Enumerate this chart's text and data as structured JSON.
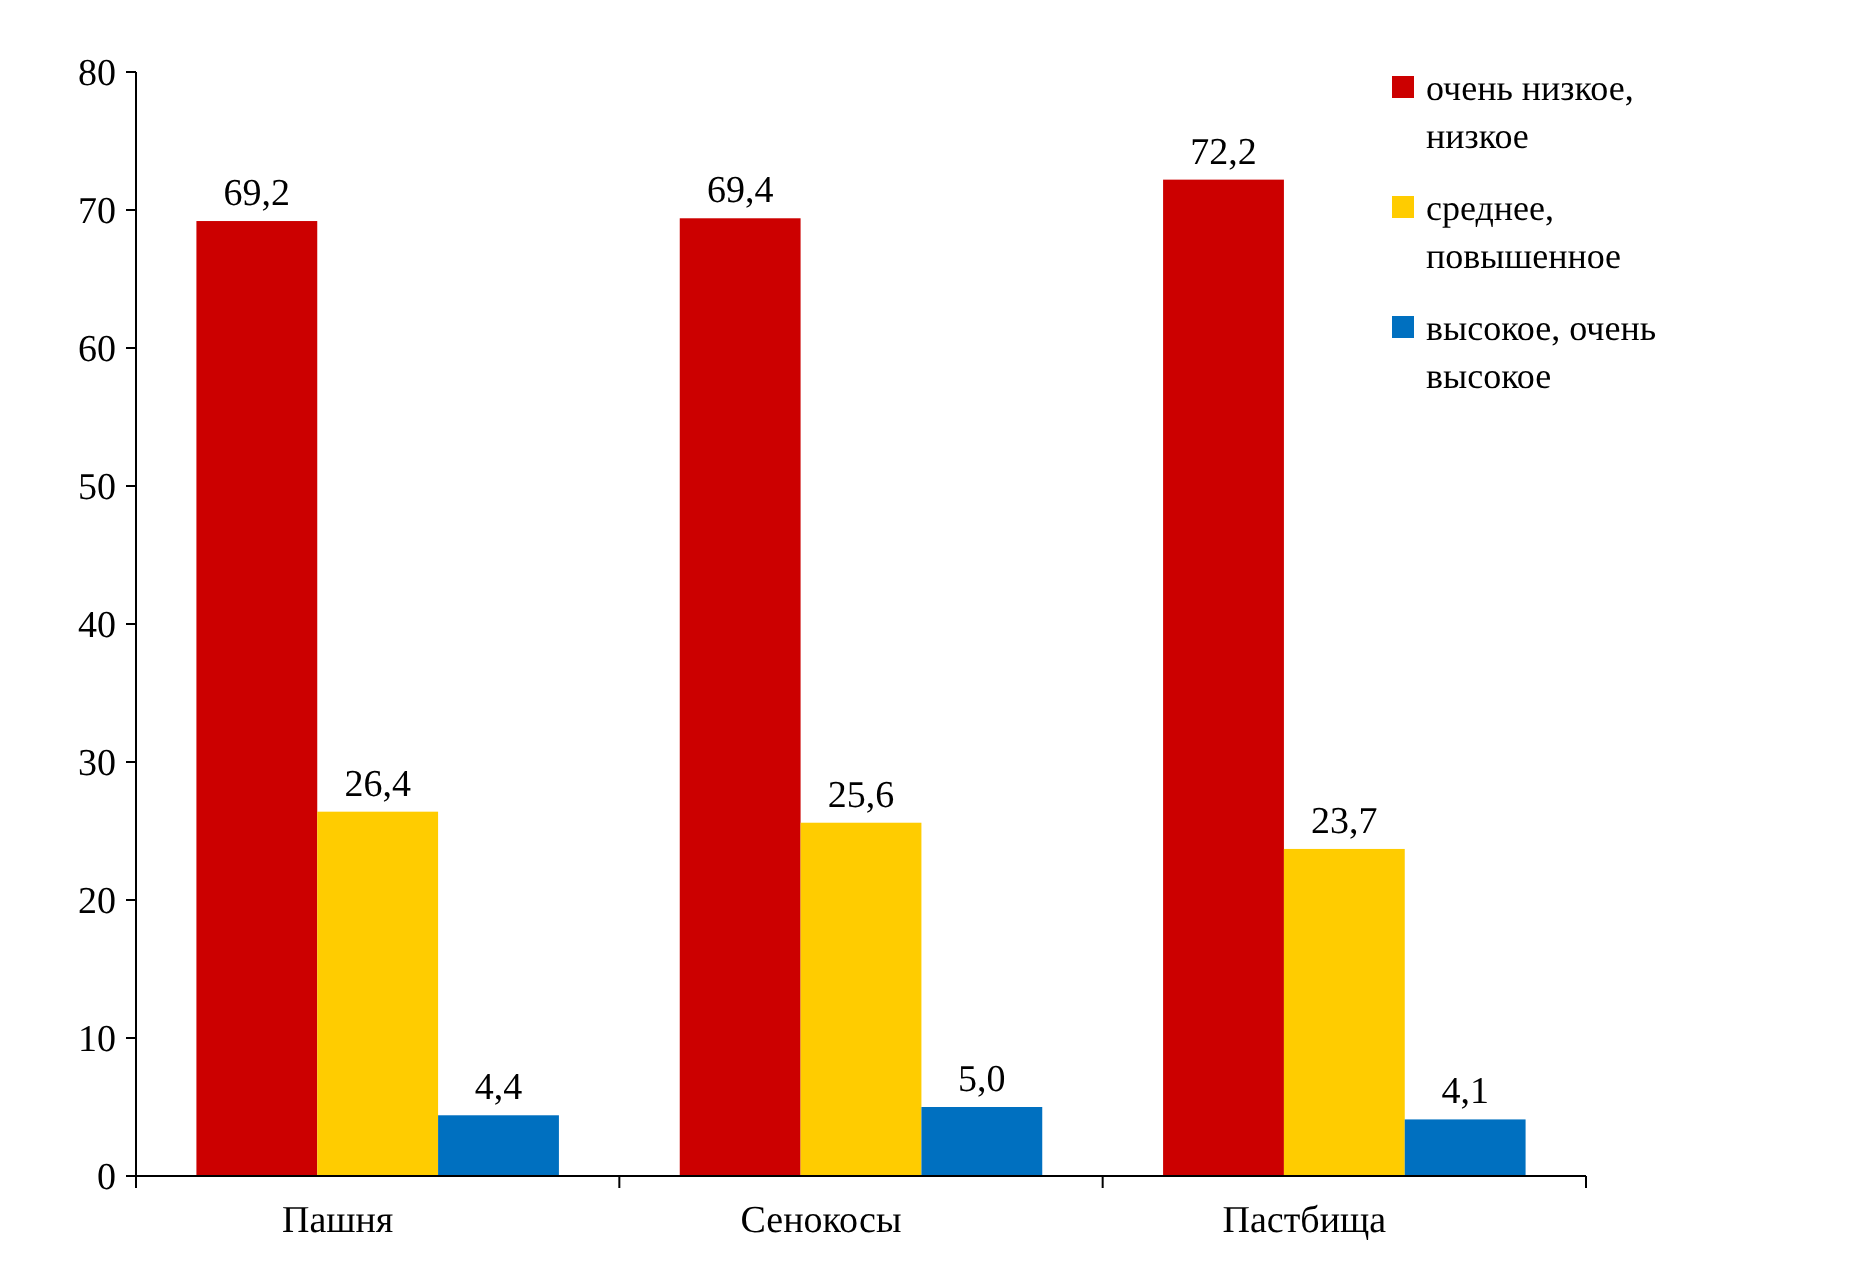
{
  "chart_data": {
    "type": "bar",
    "categories": [
      "Пашня",
      "Сенокосы",
      "Пастбища"
    ],
    "series": [
      {
        "name": "очень низкое, низкое",
        "color": "#cc0000",
        "values": [
          69.2,
          69.4,
          72.2
        ],
        "value_labels": [
          "69,2",
          "69,4",
          "72,2"
        ]
      },
      {
        "name": "среднее, повышенное",
        "color": "#ffcc00",
        "values": [
          26.4,
          25.6,
          23.7
        ],
        "value_labels": [
          "26,4",
          "25,6",
          "23,7"
        ]
      },
      {
        "name": "высокое, очень высокое",
        "color": "#0070c0",
        "values": [
          4.4,
          5.0,
          4.1
        ],
        "value_labels": [
          "4,4",
          "5,0",
          "4,1"
        ]
      }
    ],
    "ylim": [
      0,
      80
    ],
    "yticks": [
      0,
      10,
      20,
      30,
      40,
      50,
      60,
      70,
      80
    ],
    "grid": false,
    "legend": "top right"
  }
}
